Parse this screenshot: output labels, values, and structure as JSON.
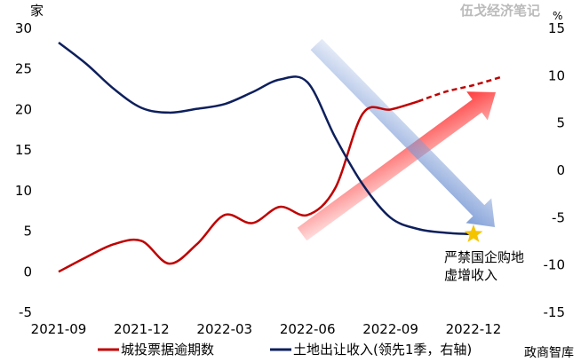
{
  "chart_data": {
    "type": "line",
    "watermark": "伍戈经济笔记",
    "footer": "政商智库",
    "left_unit": "家",
    "right_unit": "%",
    "yleft": {
      "range": [
        -5,
        30
      ],
      "ticks": [
        "-5",
        "0",
        "5",
        "10",
        "15",
        "20",
        "25",
        "30"
      ]
    },
    "yright": {
      "range": [
        -15,
        15
      ],
      "ticks": [
        "-15",
        "-10",
        "-5",
        "0",
        "5",
        "10",
        "15"
      ]
    },
    "x_ticks": [
      "2021-09",
      "2021-12",
      "2022-03",
      "2022-06",
      "2022-09",
      "2022-12"
    ],
    "x": [
      "2021-09",
      "2021-10",
      "2021-11",
      "2021-12",
      "2022-01",
      "2022-02",
      "2022-03",
      "2022-04",
      "2022-05",
      "2022-06",
      "2022-07",
      "2022-08",
      "2022-09",
      "2022-10",
      "2022-11",
      "2022-12",
      "2023-01"
    ],
    "series": [
      {
        "name": "城投票据逾期数",
        "axis": "left",
        "color": "#c00000",
        "values": [
          0,
          1.8,
          3.4,
          3.8,
          1,
          3.4,
          7,
          6,
          8,
          7,
          10.3,
          19.5,
          20,
          21,
          22.2,
          23,
          24
        ],
        "dashed_from": "2022-10"
      },
      {
        "name": "土地出让收入(领先1季，右轴)",
        "axis": "right",
        "color": "#0d1f5c",
        "values": [
          13.5,
          11.25,
          8.6,
          6.6,
          6.1,
          6.5,
          7,
          8.25,
          9.6,
          9.3,
          3.5,
          -1.5,
          -5,
          -6.2,
          -6.6,
          -6.75,
          null
        ]
      }
    ],
    "annotation": {
      "lines": [
        "严禁国企购地",
        "虚增收入"
      ],
      "at": "2022-12",
      "marker": "star",
      "marker_color": "#f5c400"
    },
    "arrows": [
      {
        "color": "#ff4040",
        "direction": "up"
      },
      {
        "color": "#7a9ad6",
        "direction": "down"
      }
    ],
    "legend": "bottom"
  }
}
